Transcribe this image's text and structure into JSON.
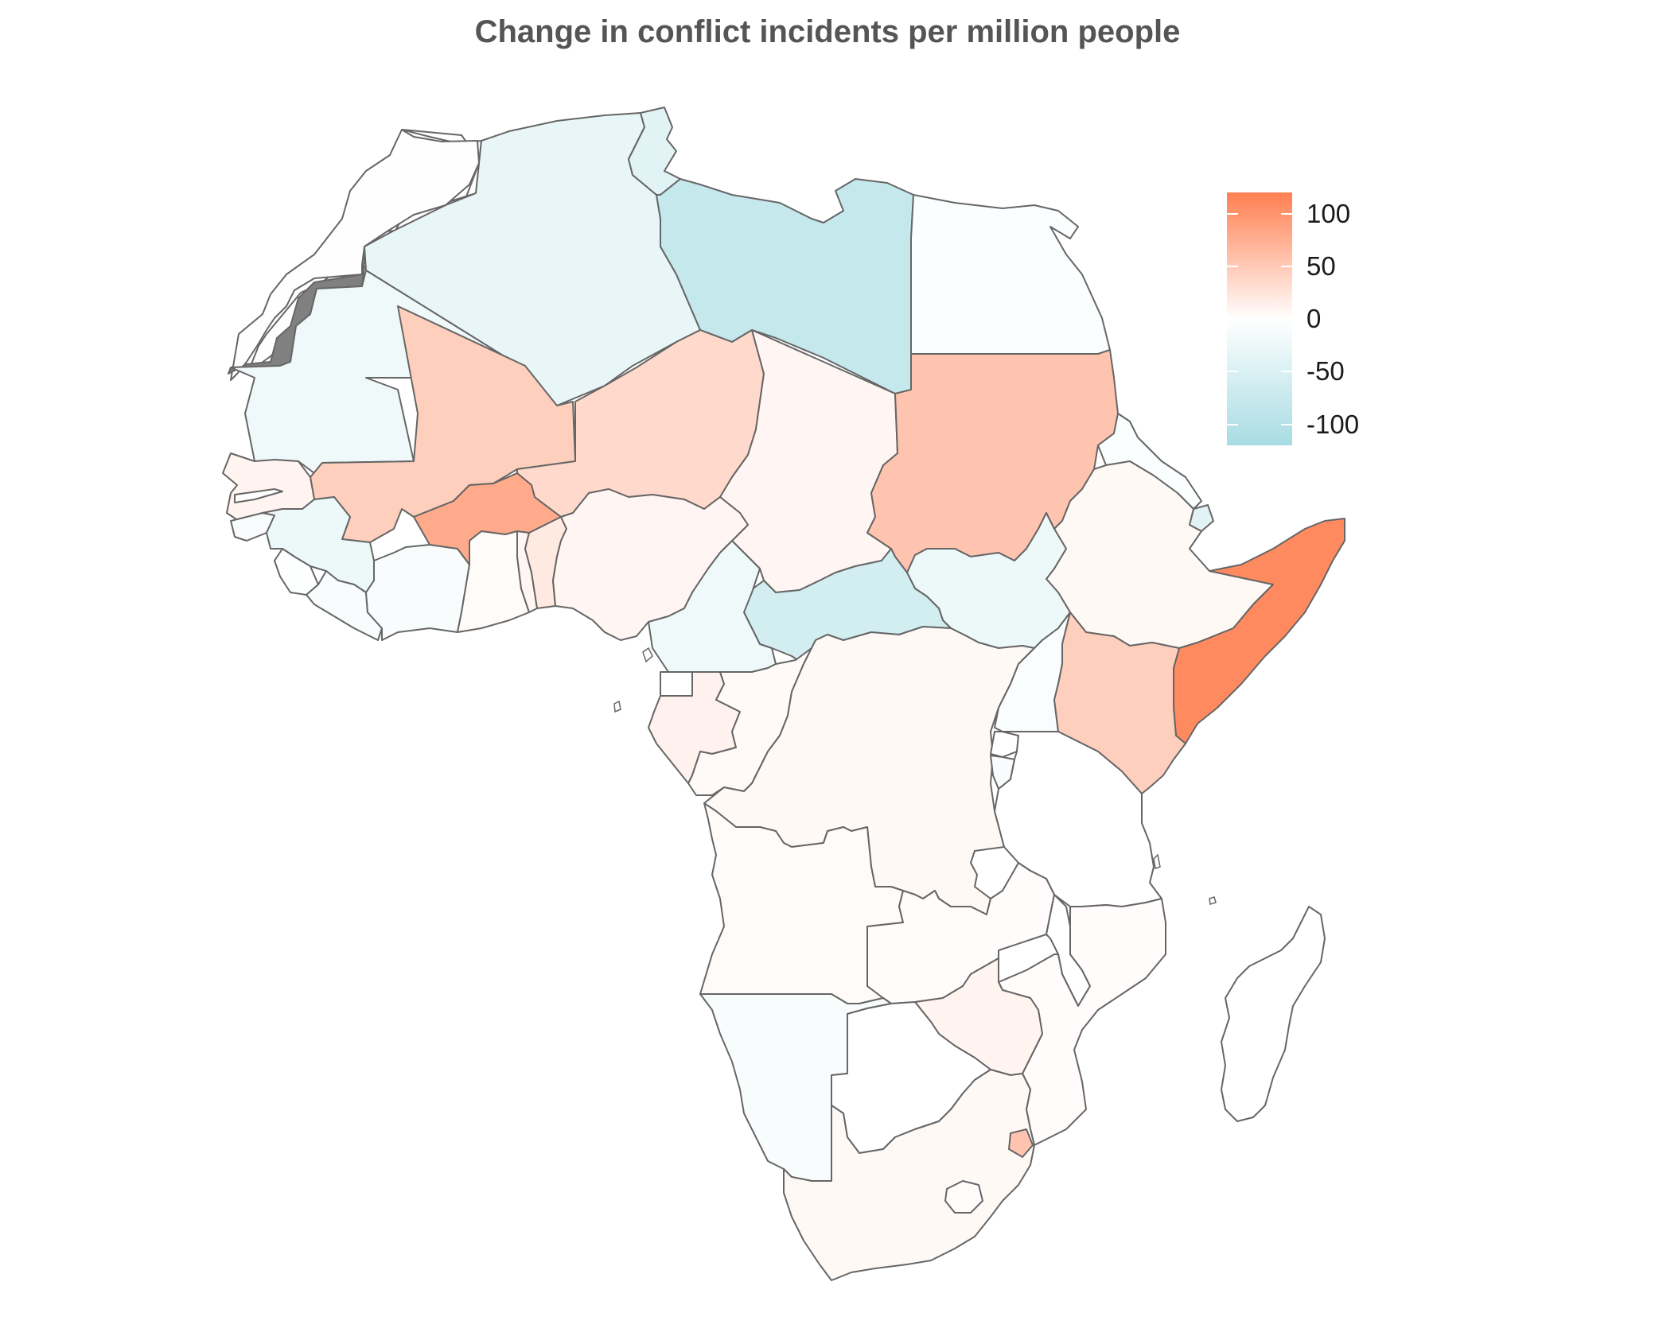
{
  "title": "Change in conflict incidents per million people",
  "legend": {
    "min": -120,
    "max": 120,
    "low_color": "#A7DCE3",
    "mid_color": "#FFFFFF",
    "high_color": "#FF7F50",
    "ticks": [
      {
        "value": 100,
        "label": "100"
      },
      {
        "value": 50,
        "label": "50"
      },
      {
        "value": 0,
        "label": "0"
      },
      {
        "value": -50,
        "label": "-50"
      },
      {
        "value": -100,
        "label": "-100"
      }
    ]
  },
  "colors": {
    "border": "#666666",
    "missing": "#808080"
  },
  "regions": [
    {
      "name": "western-sahara",
      "value": null
    },
    {
      "name": "morocco",
      "value": -2
    },
    {
      "name": "algeria",
      "value": -30
    },
    {
      "name": "tunisia",
      "value": -40
    },
    {
      "name": "libya",
      "value": -80
    },
    {
      "name": "egypt",
      "value": -5
    },
    {
      "name": "mauritania",
      "value": -20
    },
    {
      "name": "mali",
      "value": 45
    },
    {
      "name": "niger",
      "value": 35
    },
    {
      "name": "chad",
      "value": 8
    },
    {
      "name": "sudan",
      "value": 55
    },
    {
      "name": "senegal",
      "value": 10
    },
    {
      "name": "gambia",
      "value": 0
    },
    {
      "name": "guinea-bissau",
      "value": -10
    },
    {
      "name": "guinea",
      "value": -25
    },
    {
      "name": "sierra-leone",
      "value": -3
    },
    {
      "name": "liberia",
      "value": -10
    },
    {
      "name": "cote-divoire",
      "value": -10
    },
    {
      "name": "burkina-faso",
      "value": 80
    },
    {
      "name": "ghana",
      "value": 4
    },
    {
      "name": "togo",
      "value": 8
    },
    {
      "name": "benin",
      "value": 20
    },
    {
      "name": "nigeria",
      "value": 8
    },
    {
      "name": "cameroon",
      "value": -20
    },
    {
      "name": "central-african-republic",
      "value": -60
    },
    {
      "name": "south-sudan",
      "value": -25
    },
    {
      "name": "eritrea",
      "value": -5
    },
    {
      "name": "djibouti",
      "value": -40
    },
    {
      "name": "ethiopia",
      "value": 6
    },
    {
      "name": "somalia",
      "value": 110
    },
    {
      "name": "kenya",
      "value": 45
    },
    {
      "name": "uganda",
      "value": -8
    },
    {
      "name": "rwanda",
      "value": 0
    },
    {
      "name": "burundi",
      "value": -10
    },
    {
      "name": "equatorial-guinea",
      "value": 0
    },
    {
      "name": "gabon",
      "value": 12
    },
    {
      "name": "congo",
      "value": 5
    },
    {
      "name": "dr-congo",
      "value": 6
    },
    {
      "name": "tanzania",
      "value": 0
    },
    {
      "name": "angola",
      "value": 4
    },
    {
      "name": "zambia",
      "value": 3
    },
    {
      "name": "malawi",
      "value": 0
    },
    {
      "name": "mozambique",
      "value": 3
    },
    {
      "name": "zimbabwe",
      "value": 10
    },
    {
      "name": "namibia",
      "value": -10
    },
    {
      "name": "botswana",
      "value": 0
    },
    {
      "name": "south-africa",
      "value": 6
    },
    {
      "name": "eswatini",
      "value": 55
    },
    {
      "name": "lesotho",
      "value": 3
    },
    {
      "name": "madagascar",
      "value": 0
    }
  ]
}
